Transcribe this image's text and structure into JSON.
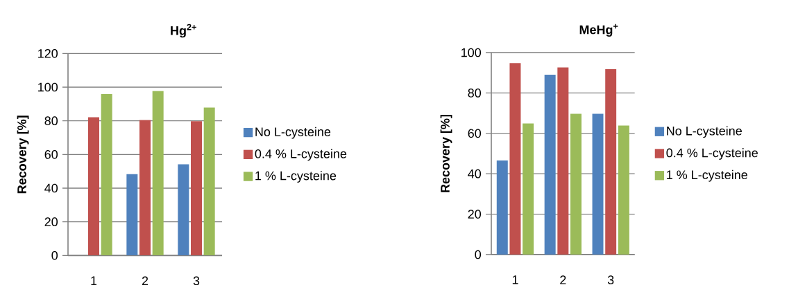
{
  "chart_data": [
    {
      "type": "bar",
      "title": "Hg$^{2+}$",
      "ylabel": "Recovery [%]",
      "categories": [
        "1",
        "2",
        "3"
      ],
      "series": [
        {
          "name": "No L-cysteine",
          "color": "#4f81bd",
          "values": [
            null,
            48.3,
            54.2
          ]
        },
        {
          "name": "0.4 % L-cysteine",
          "color": "#c0504d",
          "values": [
            82.1,
            80.5,
            79.8
          ]
        },
        {
          "name": "1 % L-cysteine",
          "color": "#9bbb59",
          "values": [
            95.9,
            97.7,
            87.9
          ]
        }
      ],
      "ylim": [
        0,
        120
      ],
      "yticks": [
        0,
        20,
        40,
        60,
        80,
        100,
        120
      ],
      "grid": "y",
      "legend": "right"
    },
    {
      "type": "bar",
      "title": "MeHg$^{+}$",
      "ylabel": "Recovery [%]",
      "categories": [
        "1",
        "2",
        "3"
      ],
      "series": [
        {
          "name": "No L-cysteine",
          "color": "#4f81bd",
          "values": [
            46.6,
            89.0,
            69.7
          ]
        },
        {
          "name": "0.4 % L-cysteine",
          "color": "#c0504d",
          "values": [
            94.8,
            92.6,
            91.8
          ]
        },
        {
          "name": "1 % L-cysteine",
          "color": "#9bbb59",
          "values": [
            64.9,
            69.7,
            63.9
          ]
        }
      ],
      "ylim": [
        0,
        100
      ],
      "yticks": [
        0,
        20,
        40,
        60,
        80,
        100
      ],
      "grid": "y",
      "legend": "right"
    }
  ]
}
